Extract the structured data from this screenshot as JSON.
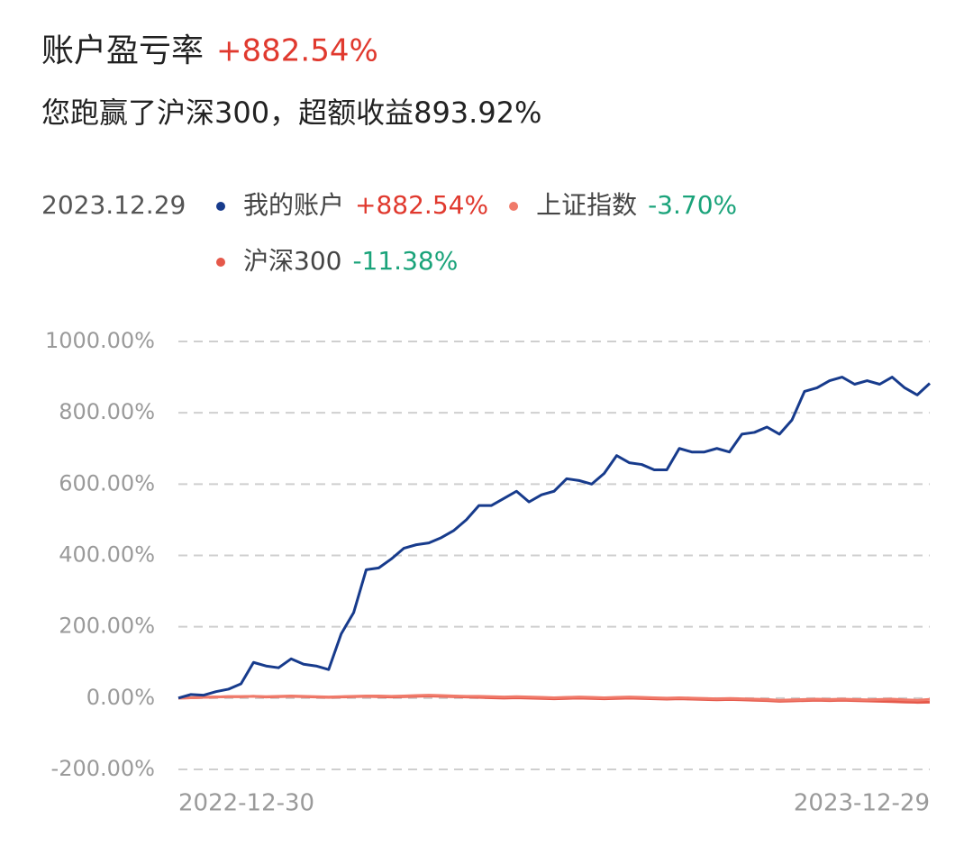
{
  "chart_data": {
    "type": "line",
    "title": "账户盈亏率",
    "title_value": "+882.54%",
    "title_value_color": "#e0392e",
    "subtitle": "您跑赢了沪深300，超额收益893.92%",
    "legend_date": "2023.12.29",
    "categories": [
      "2022-12-30",
      null,
      null,
      null,
      null,
      null,
      null,
      null,
      null,
      null,
      null,
      null,
      null,
      null,
      null,
      null,
      null,
      null,
      null,
      null,
      null,
      null,
      null,
      null,
      null,
      null,
      null,
      null,
      null,
      null,
      null,
      null,
      null,
      null,
      null,
      null,
      null,
      null,
      null,
      null,
      null,
      null,
      null,
      null,
      null,
      null,
      null,
      null,
      null,
      null,
      null,
      null,
      null,
      null,
      null,
      null,
      null,
      null,
      null,
      null,
      "2023-12-29"
    ],
    "series": [
      {
        "name": "我的账户",
        "color": "#173b8c",
        "legend_value": "+882.54%",
        "legend_value_color": "#e0392e",
        "values": [
          0,
          10,
          8,
          18,
          25,
          40,
          100,
          90,
          85,
          110,
          95,
          90,
          80,
          180,
          240,
          360,
          365,
          390,
          420,
          430,
          435,
          450,
          470,
          500,
          540,
          540,
          560,
          580,
          550,
          570,
          580,
          615,
          610,
          600,
          630,
          680,
          660,
          655,
          640,
          640,
          700,
          690,
          690,
          700,
          690,
          740,
          745,
          760,
          740,
          780,
          860,
          870,
          890,
          900,
          880,
          890,
          880,
          900,
          870,
          850,
          882.54
        ]
      },
      {
        "name": "上证指数",
        "color": "#f07a6a",
        "legend_value": "-3.70%",
        "legend_value_color": "#1aa37a",
        "values": [
          0,
          1,
          2,
          3,
          4,
          4,
          5,
          4,
          5,
          6,
          5,
          4,
          3,
          4,
          5,
          6,
          6,
          5,
          6,
          7,
          8,
          7,
          6,
          5,
          5,
          4,
          3,
          4,
          3,
          2,
          1,
          2,
          3,
          2,
          1,
          2,
          3,
          2,
          1,
          0,
          1,
          0,
          -1,
          -2,
          -1,
          -2,
          -3,
          -4,
          -6,
          -5,
          -4,
          -3,
          -4,
          -3,
          -4,
          -5,
          -4,
          -3,
          -5,
          -6,
          -3.7
        ]
      },
      {
        "name": "沪深300",
        "color": "#e5584a",
        "legend_value": "-11.38%",
        "legend_value_color": "#1aa37a",
        "values": [
          0,
          1,
          2,
          3,
          4,
          4,
          5,
          3,
          4,
          5,
          4,
          3,
          2,
          3,
          4,
          5,
          4,
          3,
          4,
          5,
          6,
          5,
          4,
          3,
          2,
          1,
          0,
          1,
          0,
          -1,
          -2,
          -1,
          0,
          -1,
          -2,
          -1,
          0,
          -1,
          -2,
          -3,
          -2,
          -3,
          -4,
          -5,
          -4,
          -5,
          -6,
          -7,
          -9,
          -8,
          -7,
          -6,
          -7,
          -6,
          -7,
          -8,
          -9,
          -10,
          -11,
          -12,
          -11.38
        ]
      }
    ],
    "ylim": [
      -200,
      1000
    ],
    "yticks": [
      {
        "value": -200,
        "label": "-200.00%"
      },
      {
        "value": 0,
        "label": "0.00%"
      },
      {
        "value": 200,
        "label": "200.00%"
      },
      {
        "value": 400,
        "label": "400.00%"
      },
      {
        "value": 600,
        "label": "600.00%"
      },
      {
        "value": 800,
        "label": "800.00%"
      },
      {
        "value": 1000,
        "label": "1000.00%"
      }
    ],
    "grid": true
  }
}
